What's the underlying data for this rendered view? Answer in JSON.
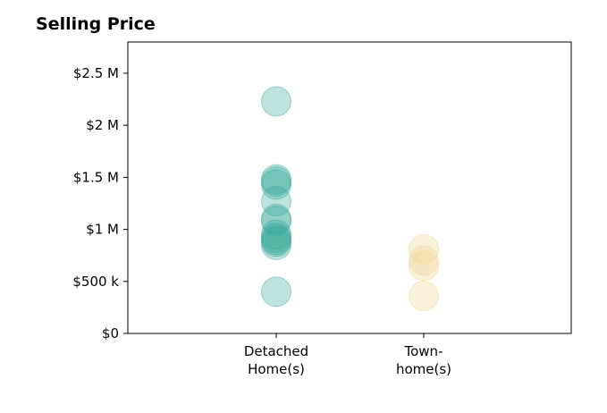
{
  "chart_data": {
    "type": "scatter",
    "title": "Selling Price",
    "xlabel": "",
    "ylabel": "",
    "ylim": [
      0,
      2800000
    ],
    "categories": [
      {
        "line1": "Detached",
        "line2": "Home(s)"
      },
      {
        "line1": "Town-",
        "line2": "home(s)"
      }
    ],
    "yticks": [
      {
        "value": 0,
        "label": "$0"
      },
      {
        "value": 500000,
        "label": "$500 k"
      },
      {
        "value": 1000000,
        "label": "$1 M"
      },
      {
        "value": 1500000,
        "label": "$1.5 M"
      },
      {
        "value": 2000000,
        "label": "$2 M"
      },
      {
        "value": 2500000,
        "label": "$2.5 M"
      }
    ],
    "series": [
      {
        "color": "#3aa99b",
        "category": 0,
        "values": [
          2230000,
          1480000,
          1460000,
          1430000,
          1270000,
          1100000,
          1080000,
          950000,
          920000,
          900000,
          880000,
          850000,
          400000
        ]
      },
      {
        "color": "#f0d591",
        "category": 1,
        "values": [
          810000,
          700000,
          650000,
          360000
        ]
      }
    ],
    "grid": false,
    "legend": "none"
  }
}
